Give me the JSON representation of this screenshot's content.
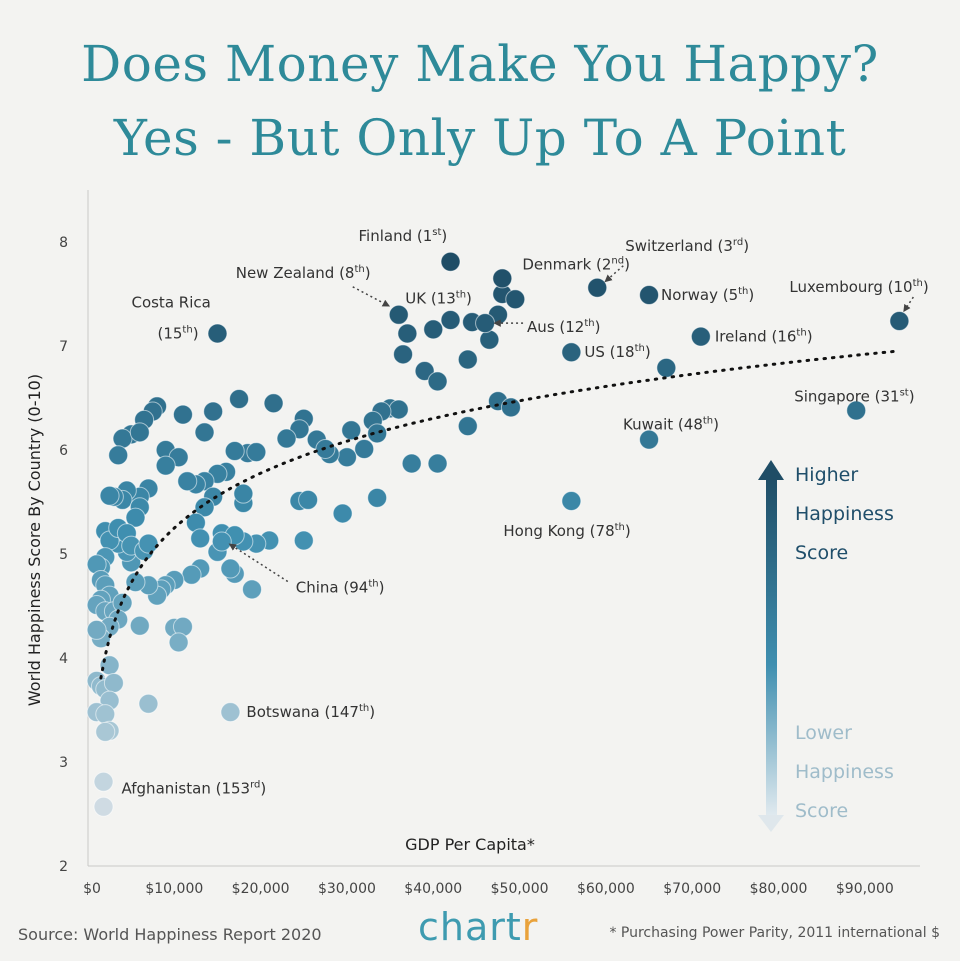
{
  "header": {
    "title_line1": "Does Money Make You Happy?",
    "title_line2": "Yes - But Only Up To A Point"
  },
  "footer": {
    "source": "Source: World Happiness Report 2020",
    "brand_main": "chart",
    "brand_accent": "r",
    "footnote": "* Purchasing Power Parity, 2011 international $"
  },
  "legend": {
    "high": [
      "Higher",
      "Happiness",
      "Score"
    ],
    "low": [
      "Lower",
      "Happiness",
      "Score"
    ]
  },
  "colors": {
    "dot_high": "#1f4d66",
    "dot_low": "#cfdbe3",
    "trend": "#111111",
    "title": "#2e8a99"
  },
  "chart_data": {
    "type": "scatter",
    "xlabel": "GDP Per Capita*",
    "ylabel": "World Happiness Score By Country (0-10)",
    "xlim": [
      0,
      95000
    ],
    "ylim": [
      2,
      8.5
    ],
    "x_ticks": [
      0,
      10000,
      20000,
      30000,
      40000,
      50000,
      60000,
      70000,
      80000,
      90000
    ],
    "x_tick_labels": [
      "$0",
      "$10,000",
      "$20,000",
      "$30,000",
      "$40,000",
      "$50,000",
      "$60,000",
      "$70,000",
      "$80,000",
      "$90,000"
    ],
    "y_ticks": [
      2,
      3,
      4,
      5,
      6,
      7,
      8
    ],
    "y_tick_labels": [
      "2",
      "3",
      "4",
      "5",
      "6",
      "7",
      "8"
    ],
    "trendline": "logarithmic",
    "labeled_points": [
      {
        "name": "Finland",
        "rank": "1",
        "suffix": "st",
        "x": 42000,
        "y": 7.81
      },
      {
        "name": "Denmark",
        "rank": "2",
        "suffix": "nd",
        "x": 48000,
        "y": 7.65
      },
      {
        "name": "Switzerland",
        "rank": "3",
        "suffix": "rd",
        "x": 59000,
        "y": 7.56
      },
      {
        "name": "Norway",
        "rank": "5",
        "suffix": "th",
        "x": 65000,
        "y": 7.49
      },
      {
        "name": "Luxembourg",
        "rank": "10",
        "suffix": "th",
        "x": 94000,
        "y": 7.24
      },
      {
        "name": "New Zealand",
        "rank": "8",
        "suffix": "th",
        "x": 36000,
        "y": 7.3
      },
      {
        "name": "UK",
        "rank": "13",
        "suffix": "th",
        "x": 40000,
        "y": 7.16
      },
      {
        "name": "Aus",
        "rank": "12",
        "suffix": "th",
        "x": 46000,
        "y": 7.22
      },
      {
        "name": "Costa Rica",
        "rank": "15",
        "suffix": "th",
        "x": 15000,
        "y": 7.12
      },
      {
        "name": "Ireland",
        "rank": "16",
        "suffix": "th",
        "x": 71000,
        "y": 7.09
      },
      {
        "name": "US",
        "rank": "18",
        "suffix": "th",
        "x": 56000,
        "y": 6.94
      },
      {
        "name": "Singapore",
        "rank": "31",
        "suffix": "st",
        "x": 89000,
        "y": 6.38
      },
      {
        "name": "Kuwait",
        "rank": "48",
        "suffix": "th",
        "x": 65000,
        "y": 6.1
      },
      {
        "name": "Hong Kong",
        "rank": "78",
        "suffix": "th",
        "x": 56000,
        "y": 5.51
      },
      {
        "name": "China",
        "rank": "94",
        "suffix": "th",
        "x": 15500,
        "y": 5.12
      },
      {
        "name": "Botswana",
        "rank": "147",
        "suffix": "th",
        "x": 16500,
        "y": 3.48
      },
      {
        "name": "Afghanistan",
        "rank": "153",
        "suffix": "rd",
        "x": 1800,
        "y": 2.57
      }
    ],
    "points": [
      [
        37000,
        7.12
      ],
      [
        36500,
        6.92
      ],
      [
        44000,
        6.87
      ],
      [
        42000,
        7.25
      ],
      [
        44500,
        7.23
      ],
      [
        47500,
        7.3
      ],
      [
        48000,
        7.5
      ],
      [
        49500,
        7.45
      ],
      [
        46500,
        7.06
      ],
      [
        39000,
        6.76
      ],
      [
        40500,
        6.66
      ],
      [
        47500,
        6.47
      ],
      [
        49000,
        6.41
      ],
      [
        67000,
        6.79
      ],
      [
        44000,
        6.23
      ],
      [
        37500,
        5.87
      ],
      [
        40500,
        5.87
      ],
      [
        35000,
        6.4
      ],
      [
        36000,
        6.39
      ],
      [
        34000,
        6.37
      ],
      [
        33000,
        6.28
      ],
      [
        33500,
        6.16
      ],
      [
        32000,
        6.01
      ],
      [
        30000,
        5.93
      ],
      [
        30500,
        6.19
      ],
      [
        28000,
        5.96
      ],
      [
        26500,
        6.1
      ],
      [
        27500,
        6.01
      ],
      [
        25000,
        6.3
      ],
      [
        24500,
        6.2
      ],
      [
        23000,
        6.11
      ],
      [
        21500,
        6.45
      ],
      [
        17500,
        6.49
      ],
      [
        14500,
        6.37
      ],
      [
        11000,
        6.34
      ],
      [
        8000,
        6.42
      ],
      [
        7500,
        6.37
      ],
      [
        6500,
        6.29
      ],
      [
        5000,
        6.15
      ],
      [
        4000,
        6.11
      ],
      [
        3500,
        5.95
      ],
      [
        6000,
        6.17
      ],
      [
        9000,
        6.0
      ],
      [
        10500,
        5.93
      ],
      [
        13500,
        6.17
      ],
      [
        18500,
        5.97
      ],
      [
        19500,
        5.98
      ],
      [
        17000,
        5.99
      ],
      [
        16000,
        5.79
      ],
      [
        15000,
        5.77
      ],
      [
        13500,
        5.7
      ],
      [
        14500,
        5.55
      ],
      [
        12500,
        5.67
      ],
      [
        11500,
        5.7
      ],
      [
        9000,
        5.85
      ],
      [
        7000,
        5.63
      ],
      [
        6000,
        5.55
      ],
      [
        4500,
        5.61
      ],
      [
        4000,
        5.52
      ],
      [
        3000,
        5.55
      ],
      [
        2500,
        5.56
      ],
      [
        6000,
        5.45
      ],
      [
        5500,
        5.35
      ],
      [
        13500,
        5.45
      ],
      [
        12500,
        5.3
      ],
      [
        13000,
        5.15
      ],
      [
        15500,
        5.2
      ],
      [
        18000,
        5.49
      ],
      [
        18000,
        5.58
      ],
      [
        24500,
        5.51
      ],
      [
        25500,
        5.52
      ],
      [
        29500,
        5.39
      ],
      [
        33500,
        5.54
      ],
      [
        25000,
        5.13
      ],
      [
        21000,
        5.13
      ],
      [
        19500,
        5.1
      ],
      [
        18000,
        5.12
      ],
      [
        17000,
        5.18
      ],
      [
        15000,
        5.02
      ],
      [
        13000,
        4.86
      ],
      [
        12000,
        4.8
      ],
      [
        10000,
        4.75
      ],
      [
        9000,
        4.7
      ],
      [
        8500,
        4.66
      ],
      [
        8000,
        4.6
      ],
      [
        7000,
        4.7
      ],
      [
        5500,
        4.73
      ],
      [
        5000,
        4.92
      ],
      [
        4500,
        5.02
      ],
      [
        3500,
        5.1
      ],
      [
        3000,
        5.2
      ],
      [
        2000,
        5.22
      ],
      [
        2500,
        5.13
      ],
      [
        3500,
        5.25
      ],
      [
        4500,
        5.2
      ],
      [
        5000,
        5.08
      ],
      [
        6500,
        5.03
      ],
      [
        7000,
        5.1
      ],
      [
        2000,
        4.97
      ],
      [
        1500,
        4.87
      ],
      [
        1000,
        4.9
      ],
      [
        1500,
        4.75
      ],
      [
        2000,
        4.7
      ],
      [
        2500,
        4.6
      ],
      [
        1500,
        4.56
      ],
      [
        1000,
        4.51
      ],
      [
        2000,
        4.45
      ],
      [
        3000,
        4.45
      ],
      [
        4000,
        4.53
      ],
      [
        3500,
        4.37
      ],
      [
        2500,
        4.3
      ],
      [
        1500,
        4.19
      ],
      [
        1000,
        4.27
      ],
      [
        6000,
        4.31
      ],
      [
        10000,
        4.29
      ],
      [
        11000,
        4.3
      ],
      [
        10500,
        4.15
      ],
      [
        17000,
        4.81
      ],
      [
        16500,
        4.86
      ],
      [
        19000,
        4.66
      ],
      [
        2500,
        3.93
      ],
      [
        1000,
        3.78
      ],
      [
        1500,
        3.73
      ],
      [
        2000,
        3.7
      ],
      [
        3000,
        3.76
      ],
      [
        2500,
        3.59
      ],
      [
        1000,
        3.48
      ],
      [
        2000,
        3.46
      ],
      [
        2500,
        3.3
      ],
      [
        7000,
        3.56
      ],
      [
        2000,
        3.29
      ],
      [
        1800,
        2.81
      ]
    ]
  }
}
